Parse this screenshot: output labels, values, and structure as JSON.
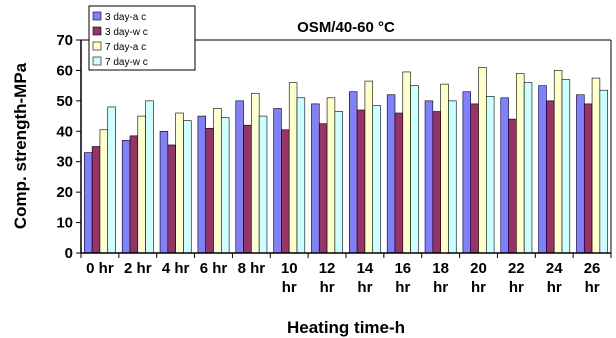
{
  "chart_data": {
    "type": "bar",
    "title": "OSM/40-60 °C",
    "xlabel": "Heating time-h",
    "ylabel": "Comp. strength-MPa",
    "ylim": [
      0,
      70
    ],
    "yticks": [
      0,
      10,
      20,
      30,
      40,
      50,
      60,
      70
    ],
    "categories": [
      [
        "0 hr"
      ],
      [
        "2 hr"
      ],
      [
        "4 hr"
      ],
      [
        "6 hr"
      ],
      [
        "8 hr"
      ],
      [
        "10",
        "hr"
      ],
      [
        "12",
        "hr"
      ],
      [
        "14",
        "hr"
      ],
      [
        "16",
        "hr"
      ],
      [
        "18",
        "hr"
      ],
      [
        "20",
        "hr"
      ],
      [
        "22",
        "hr"
      ],
      [
        "24",
        "hr"
      ],
      [
        "26",
        "hr"
      ]
    ],
    "legend_position": "top-left",
    "series": [
      {
        "name": "3 day-a c",
        "color": "#8080ff",
        "values": [
          33,
          37,
          40,
          45,
          50,
          47.5,
          49,
          53,
          52,
          50,
          53,
          51,
          55,
          52
        ]
      },
      {
        "name": "3 day-w c",
        "color": "#993366",
        "values": [
          35,
          38.5,
          35.5,
          41,
          42,
          40.5,
          42.5,
          47,
          46,
          46.5,
          49,
          44,
          50,
          49
        ]
      },
      {
        "name": "7 day-a c",
        "color": "#ffffcc",
        "values": [
          40.5,
          45,
          46,
          47.5,
          52.5,
          56,
          51,
          56.5,
          59.5,
          55.5,
          61,
          59,
          60,
          57.5
        ]
      },
      {
        "name": "7 day-w c",
        "color": "#ccffff",
        "values": [
          48,
          50,
          43.5,
          44.5,
          45,
          51,
          46.5,
          48.5,
          55,
          50,
          51.5,
          56,
          57,
          53.5
        ]
      }
    ]
  }
}
